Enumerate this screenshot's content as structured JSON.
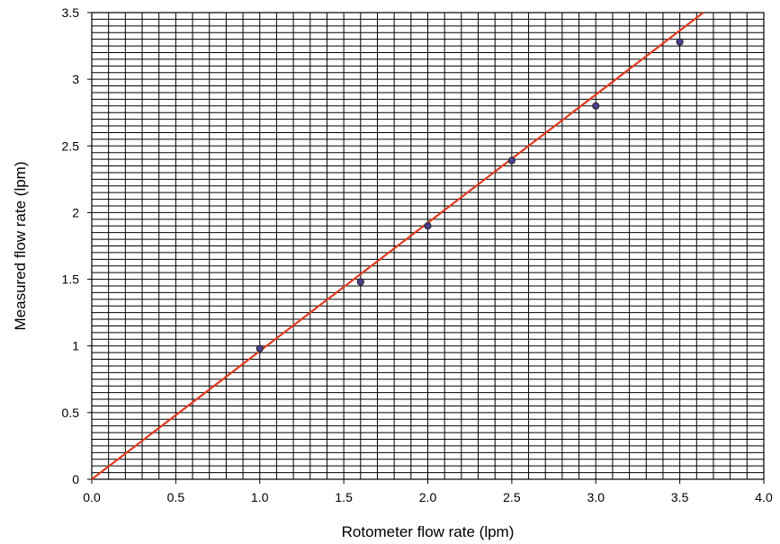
{
  "chart_data": {
    "type": "scatter",
    "title": "",
    "xlabel": "Rotometer flow rate (lpm)",
    "ylabel": "Measured flow rate  (lpm)",
    "xlim": [
      0.0,
      4.0
    ],
    "ylim": [
      0,
      3.5
    ],
    "x_ticks": [
      "0.0",
      "0.5",
      "1.0",
      "1.5",
      "2.0",
      "2.5",
      "3.0",
      "3.5",
      "4.0"
    ],
    "y_ticks": [
      "0",
      "0.5",
      "1",
      "1.5",
      "2",
      "2.5",
      "3",
      "3.5"
    ],
    "grid": true,
    "minor_grid_x_step": 0.1,
    "minor_grid_y_step": 0.05,
    "series": [
      {
        "kind": "points",
        "x": [
          1.0,
          1.6,
          2.0,
          2.5,
          3.0,
          3.5
        ],
        "y": [
          0.98,
          1.48,
          1.9,
          2.39,
          2.8,
          3.28
        ],
        "color": "#4a3f8f"
      },
      {
        "kind": "fit-line",
        "x": [
          0.0,
          3.64
        ],
        "y": [
          0.0,
          3.5
        ],
        "color": "#e03a20"
      }
    ]
  }
}
